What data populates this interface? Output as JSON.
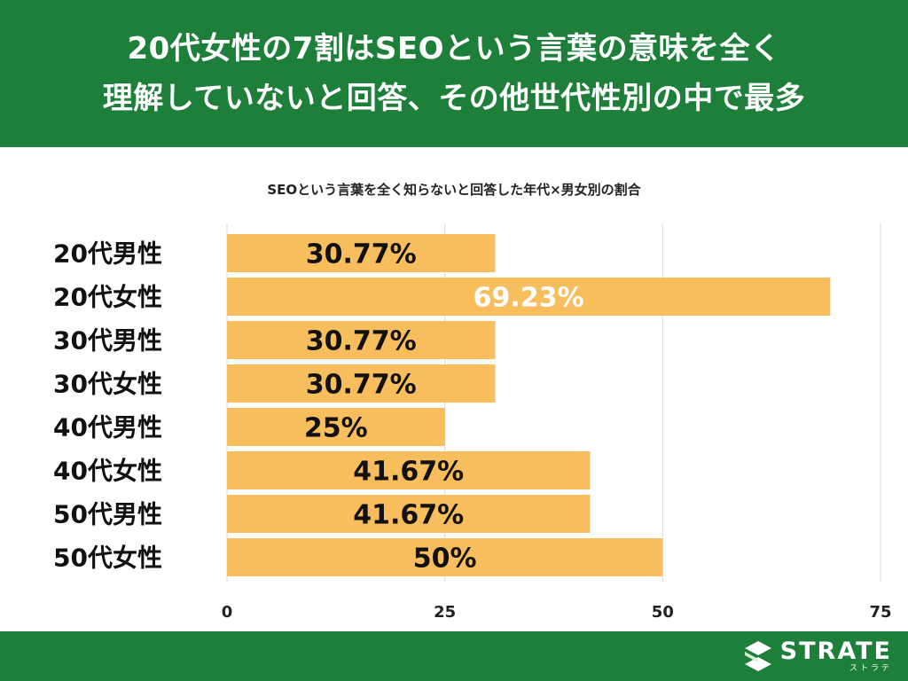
{
  "header": {
    "title_line1": "20代女性の7割はSEOという言葉の意味を全く",
    "title_line2": "理解していないと回答、その他世代性別の中で最多"
  },
  "chart_data": {
    "type": "bar",
    "orientation": "horizontal",
    "title": "SEOという言葉を全く知らないと回答した年代×男女別の割合",
    "categories": [
      "20代男性",
      "20代女性",
      "30代男性",
      "30代女性",
      "40代男性",
      "40代女性",
      "50代男性",
      "50代女性"
    ],
    "values": [
      30.77,
      69.23,
      30.77,
      30.77,
      25,
      41.67,
      41.67,
      50
    ],
    "data_labels": [
      "30.77%",
      "69.23%",
      "30.77%",
      "30.77%",
      "25%",
      "41.67%",
      "41.67%",
      "50%"
    ],
    "xlim": [
      0,
      75
    ],
    "xticks": [
      0,
      25,
      50,
      75
    ],
    "grid": true,
    "legend": "none",
    "colors": {
      "bar": "#f8bd5c",
      "highlight_label": "#ffffff",
      "label": "#111111",
      "grid": "#d9d9d9"
    }
  },
  "footer": {
    "brand": "STRATE",
    "brand_kana": "ストラテ",
    "logo_icon": "strate-logo-icon",
    "color": "#1e7f3a"
  }
}
